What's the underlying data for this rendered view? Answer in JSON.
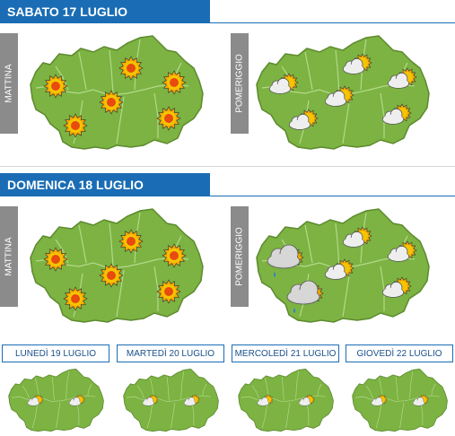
{
  "days": [
    {
      "title": "SABATO 17 LUGLIO",
      "morning_label": "MATTINA",
      "afternoon_label": "POMERIGGIO"
    },
    {
      "title": "DOMENICA 18 LUGLIO",
      "morning_label": "MATTINA",
      "afternoon_label": "POMERIGGIO"
    }
  ],
  "forecast_days": [
    {
      "label": "LUNEDÌ 19 LUGLIO"
    },
    {
      "label": "MARTEDÌ 20 LUGLIO"
    },
    {
      "label": "MERCOLEDÌ 21 LUGLIO"
    },
    {
      "label": "GIOVEDÌ 22 LUGLIO"
    }
  ],
  "colors": {
    "header": "#1a6db5",
    "land": "#7cb342",
    "label_bg": "#8b8b8b"
  },
  "map_icons": {
    "sat_morning": [
      "sun-icon",
      "sun-icon",
      "sun-icon",
      "sun-icon",
      "sun-icon",
      "sun-icon"
    ],
    "sat_afternoon": [
      "partly-cloudy-icon",
      "partly-cloudy-icon",
      "partly-cloudy-icon",
      "partly-cloudy-icon",
      "partly-cloudy-icon",
      "partly-cloudy-icon"
    ],
    "sun_morning": [
      "sun-icon",
      "sun-icon",
      "sun-icon",
      "sun-icon",
      "sun-icon",
      "sun-icon"
    ],
    "sun_afternoon": [
      "rain-cloud-icon",
      "partly-cloudy-icon",
      "partly-cloudy-icon",
      "partly-cloudy-icon",
      "rain-cloud-icon",
      "partly-cloudy-icon"
    ],
    "forecast": [
      "partly-cloudy-icon",
      "partly-cloudy-icon"
    ]
  }
}
